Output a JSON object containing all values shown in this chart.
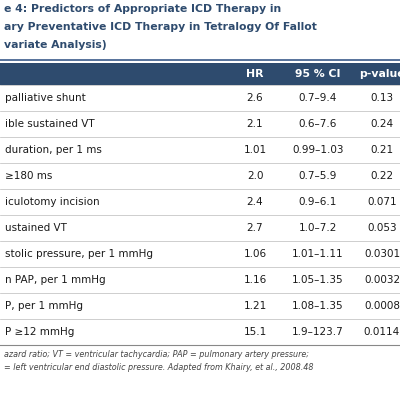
{
  "title_lines": [
    "e 4: Predictors of Appropriate ICD Therapy in",
    "ary Preventative ICD Therapy in Tetralogy Of Fallot",
    "variate Analysis)"
  ],
  "header": [
    "",
    "HR",
    "95 % CI",
    "p-value"
  ],
  "rows": [
    [
      "palliative shunt",
      "2.6",
      "0.7–9.4",
      "0.13"
    ],
    [
      "ible sustained VT",
      "2.1",
      "0.6–7.6",
      "0.24"
    ],
    [
      "duration, per 1 ms",
      "1.01",
      "0.99–1.03",
      "0.21"
    ],
    [
      "≥180 ms",
      "2.0",
      "0.7–5.9",
      "0.22"
    ],
    [
      "iculotomy incision",
      "2.4",
      "0.9–6.1",
      "0.071"
    ],
    [
      "ustained VT",
      "2.7",
      "1.0–7.2",
      "0.053"
    ],
    [
      "stolic pressure, per 1 mmHg",
      "1.06",
      "1.01–1.11",
      "0.0301"
    ],
    [
      "n PAP, per 1 mmHg",
      "1.16",
      "1.05–1.35",
      "0.0032"
    ],
    [
      "P, per 1 mmHg",
      "1.21",
      "1.08–1.35",
      "0.0008"
    ],
    [
      "P ≥12 mmHg",
      "15.1",
      "1.9–123.7",
      "0.0114"
    ]
  ],
  "footer_lines": [
    "azard ratio; VT = ventricular tachycardia; PAP = pulmonary artery pressure;",
    "= left ventricular end diastolic pressure. Adapted from Khairy, et al., 2008.48"
  ],
  "header_bg": "#2E4B6E",
  "header_fg": "#FFFFFF",
  "divider_color": "#BBBBBB",
  "title_color": "#2E4B6E",
  "footer_color": "#444444",
  "bg_color": "#FFFFFF",
  "title_fontsize": 7.8,
  "header_fontsize": 7.8,
  "row_fontsize": 7.5,
  "footer_fontsize": 5.8
}
